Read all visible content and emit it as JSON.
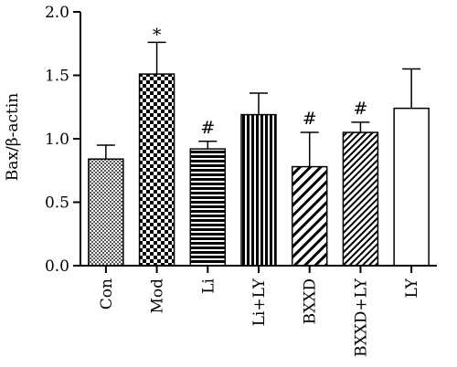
{
  "chart_data": {
    "type": "bar",
    "title": "",
    "xlabel": "",
    "ylabel": "Bax/β-actin",
    "ylim": [
      0,
      2.0
    ],
    "yticks": [
      "0.0",
      "0.5",
      "1.0",
      "1.5",
      "2.0"
    ],
    "grid": false,
    "categories": [
      "Con",
      "Mod",
      "Li",
      "Li+LY",
      "BXXD",
      "BXXD+LY",
      "LY"
    ],
    "values": [
      0.84,
      1.51,
      0.92,
      1.19,
      0.78,
      1.05,
      1.24
    ],
    "errors": [
      0.11,
      0.25,
      0.06,
      0.17,
      0.27,
      0.08,
      0.31
    ],
    "significance": [
      "",
      "*",
      "#",
      "",
      "#",
      "#",
      ""
    ],
    "patterns": [
      "fine-checker",
      "coarse-checker",
      "horizontal-lines",
      "vertical-lines",
      "diagonal-lines",
      "diagonal-lines-dense",
      "blank"
    ]
  }
}
